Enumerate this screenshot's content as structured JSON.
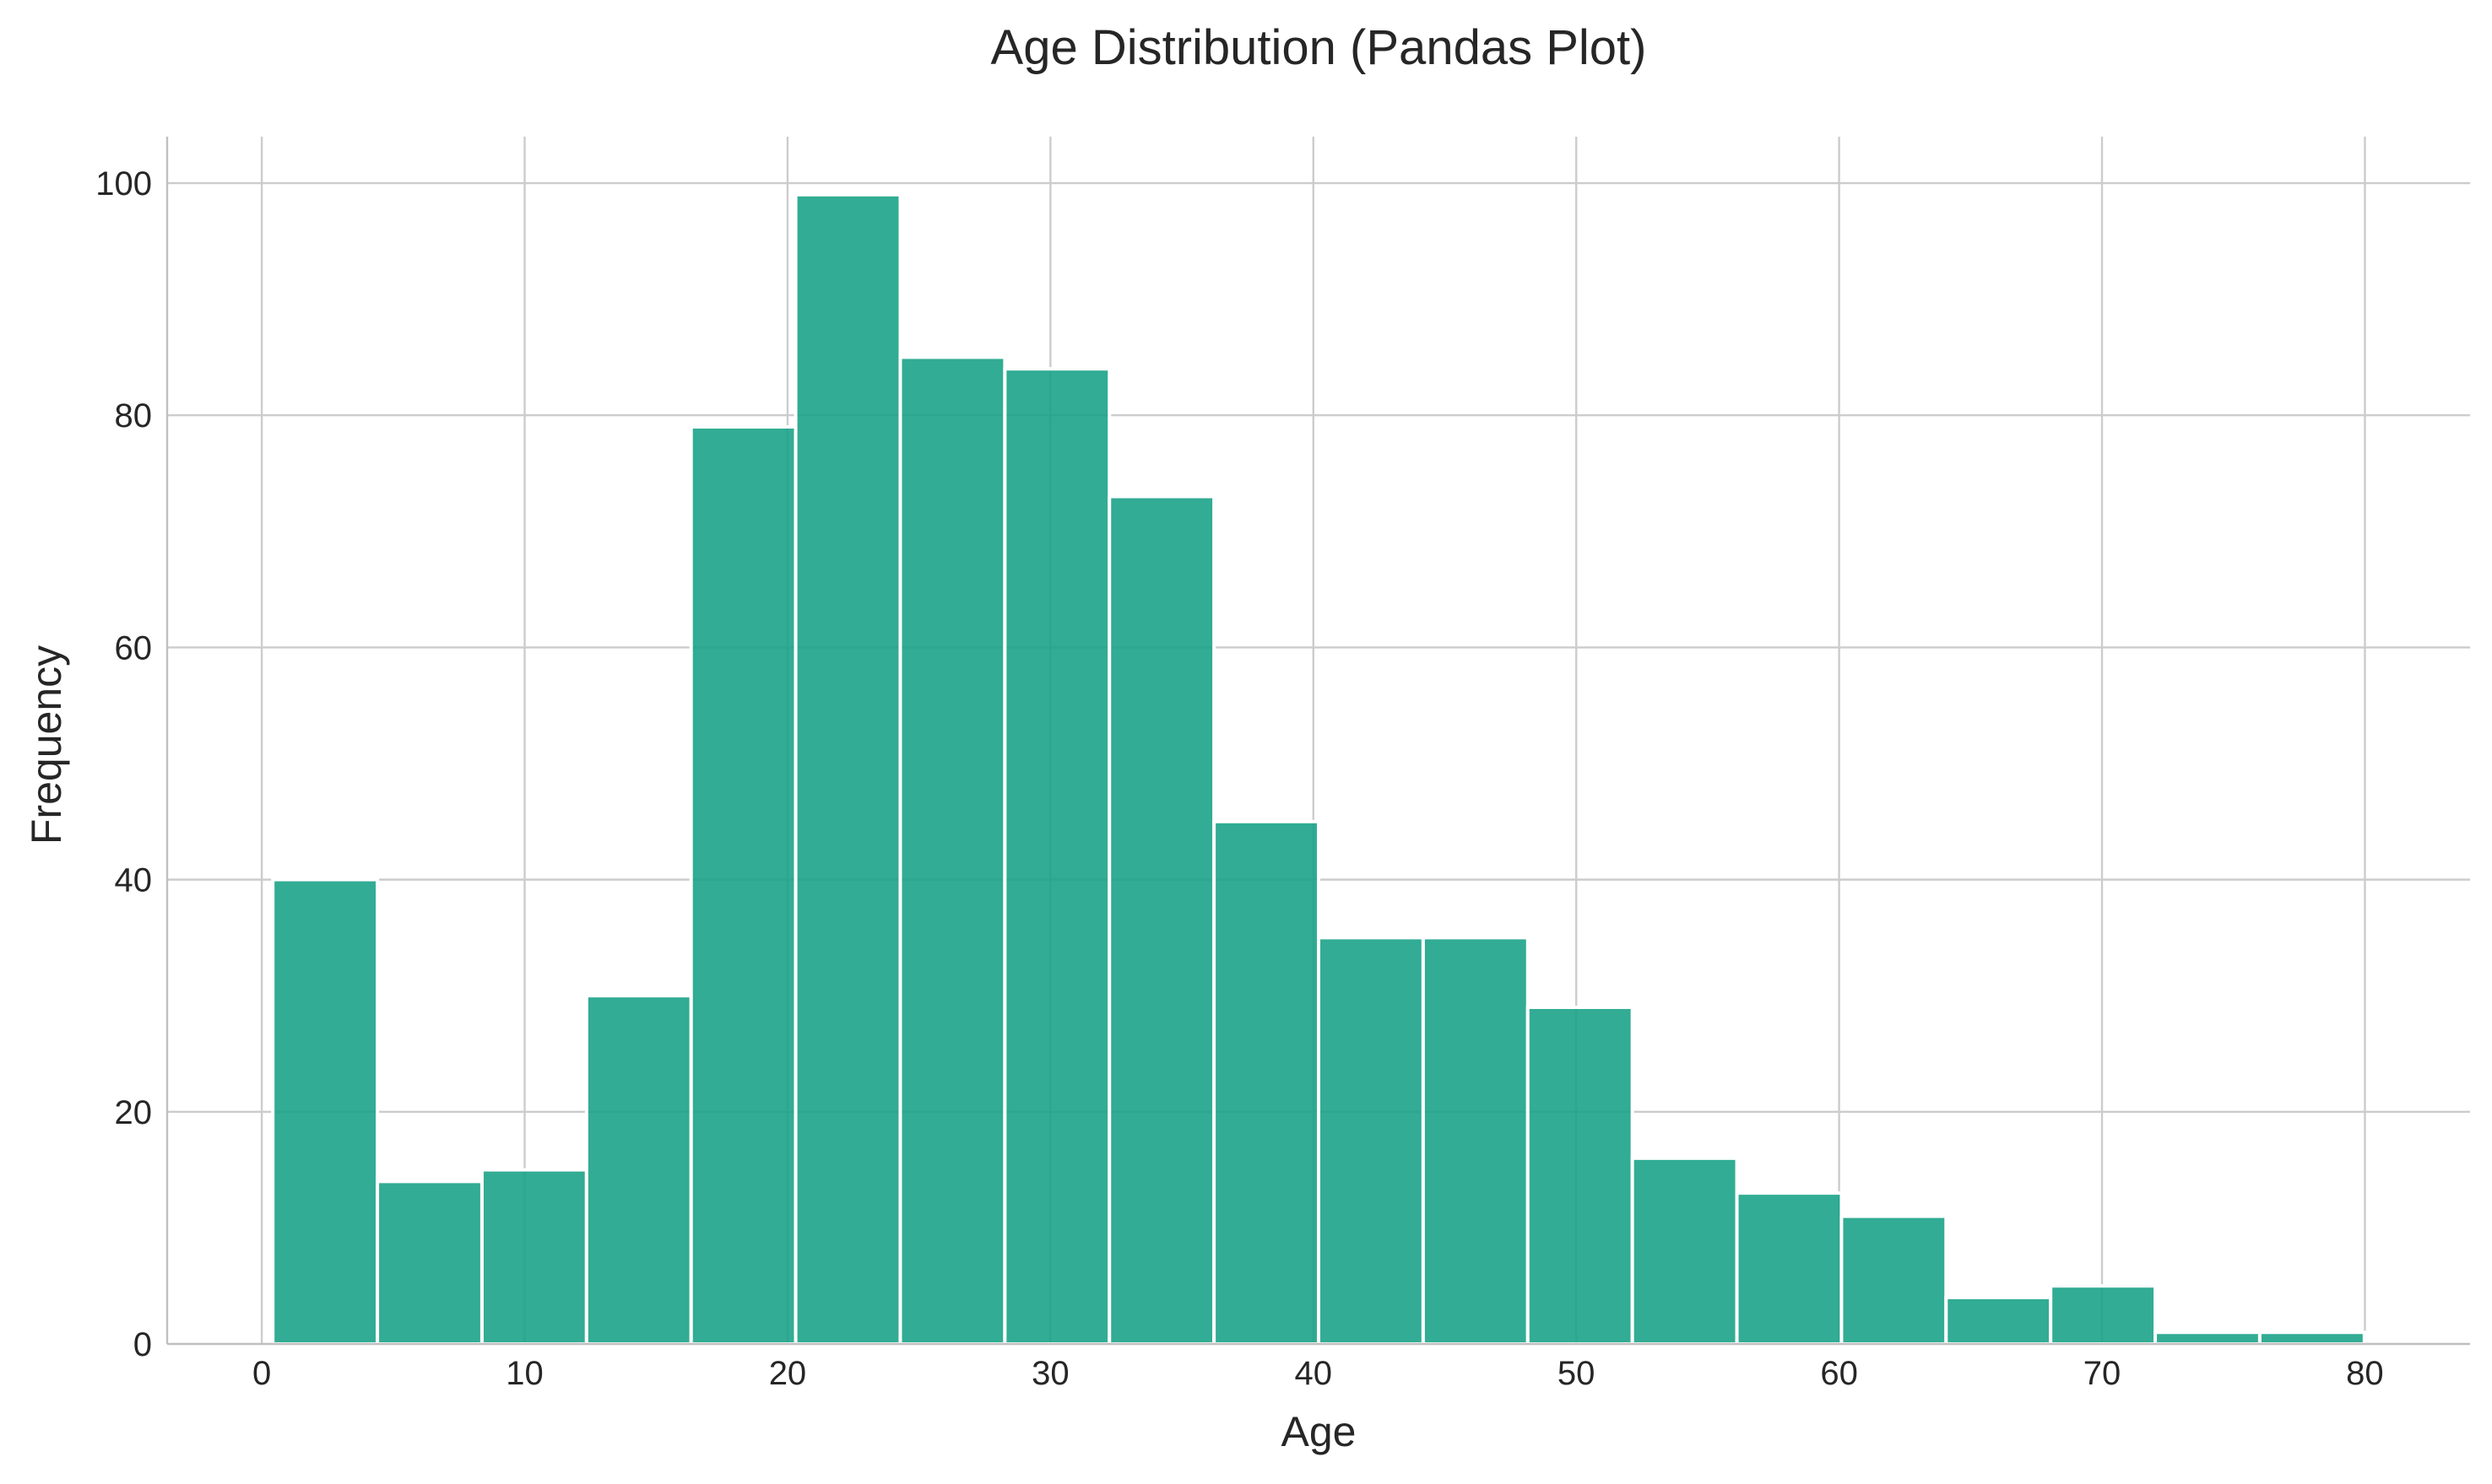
{
  "chart_data": {
    "type": "bar",
    "title": "Age Distribution (Pandas Plot)",
    "xlabel": "Age",
    "ylabel": "Frequency",
    "bin_edges": [
      0.42,
      4.398,
      8.376,
      12.354,
      16.332,
      20.31,
      24.288,
      28.266,
      32.244,
      36.222,
      40.2,
      44.178,
      48.156,
      52.134,
      56.112,
      60.09,
      64.068,
      68.046,
      72.024,
      76.002,
      79.98
    ],
    "values": [
      40,
      14,
      15,
      30,
      79,
      99,
      85,
      84,
      73,
      45,
      35,
      35,
      29,
      16,
      13,
      11,
      4,
      5,
      1,
      1
    ],
    "xlim": [
      -3.6,
      84.0
    ],
    "ylim": [
      0,
      104
    ],
    "xticks": [
      0,
      10,
      20,
      30,
      40,
      50,
      60,
      70,
      80
    ],
    "yticks": [
      0,
      20,
      40,
      60,
      80,
      100
    ],
    "grid": true,
    "bar_color": "#16a085",
    "bar_opacity": 0.88,
    "legend": "none"
  }
}
